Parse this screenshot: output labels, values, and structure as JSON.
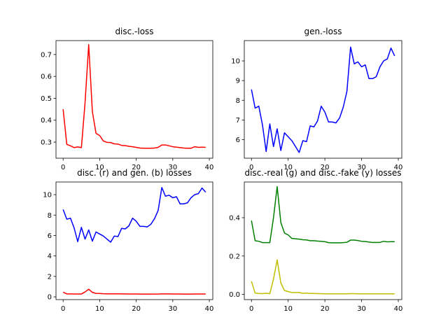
{
  "chart_data": [
    {
      "type": "line",
      "title": "disc.-loss",
      "xlabel": "",
      "ylabel": "",
      "xlim": [
        -1.95,
        40.95
      ],
      "ylim": [
        0.2265,
        0.7635
      ],
      "xticks": [
        0,
        10,
        20,
        30,
        40
      ],
      "yticks": [
        0.3,
        0.4,
        0.5,
        0.6,
        0.7
      ],
      "ytick_labels": [
        "0.3",
        "0.4",
        "0.5",
        "0.6",
        "0.7"
      ],
      "grid": false,
      "x": [
        0,
        1,
        2,
        3,
        4,
        5,
        6,
        7,
        8,
        9,
        10,
        11,
        12,
        13,
        14,
        15,
        16,
        17,
        18,
        19,
        20,
        21,
        22,
        23,
        24,
        25,
        26,
        27,
        28,
        29,
        30,
        31,
        32,
        33,
        34,
        35,
        36,
        37,
        38,
        39
      ],
      "series": [
        {
          "color": "#ff0000",
          "values": [
            0.45,
            0.29,
            0.283,
            0.275,
            0.278,
            0.275,
            0.48,
            0.745,
            0.44,
            0.34,
            0.33,
            0.305,
            0.299,
            0.298,
            0.292,
            0.291,
            0.285,
            0.284,
            0.281,
            0.279,
            0.276,
            0.273,
            0.272,
            0.272,
            0.272,
            0.273,
            0.276,
            0.287,
            0.287,
            0.283,
            0.279,
            0.277,
            0.275,
            0.273,
            0.272,
            0.272,
            0.279,
            0.276,
            0.277,
            0.276
          ]
        }
      ]
    },
    {
      "type": "line",
      "title": "gen.-loss",
      "xlabel": "",
      "ylabel": "",
      "xlim": [
        -1.95,
        40.95
      ],
      "ylim": [
        5.06,
        11.03
      ],
      "xticks": [
        0,
        10,
        20,
        30,
        40
      ],
      "yticks": [
        6,
        7,
        8,
        9,
        10
      ],
      "ytick_labels": [
        "6",
        "7",
        "8",
        "9",
        "10"
      ],
      "grid": false,
      "x": [
        0,
        1,
        2,
        3,
        4,
        5,
        6,
        7,
        8,
        9,
        10,
        11,
        12,
        13,
        14,
        15,
        16,
        17,
        18,
        19,
        20,
        21,
        22,
        23,
        24,
        25,
        26,
        27,
        28,
        29,
        30,
        31,
        32,
        33,
        34,
        35,
        36,
        37,
        38,
        39
      ],
      "series": [
        {
          "color": "#0000ff",
          "values": [
            8.55,
            7.6,
            7.7,
            6.75,
            5.4,
            6.8,
            5.65,
            6.55,
            5.45,
            6.35,
            6.15,
            5.95,
            5.65,
            5.35,
            5.95,
            5.9,
            6.7,
            6.65,
            6.95,
            7.7,
            7.4,
            6.9,
            6.9,
            6.85,
            7.1,
            7.65,
            8.45,
            10.7,
            9.85,
            9.95,
            9.7,
            9.8,
            9.1,
            9.1,
            9.2,
            9.7,
            10.0,
            10.1,
            10.65,
            10.25
          ]
        }
      ]
    },
    {
      "type": "line",
      "title": "disc. (r) and gen. (b) losses",
      "xlabel": "",
      "ylabel": "",
      "xlim": [
        -1.95,
        40.95
      ],
      "ylim": [
        -0.27,
        11.24
      ],
      "xticks": [
        0,
        10,
        20,
        30,
        40
      ],
      "yticks": [
        0,
        2,
        4,
        6,
        8,
        10
      ],
      "ytick_labels": [
        "0",
        "2",
        "4",
        "6",
        "8",
        "10"
      ],
      "grid": false,
      "x": [
        0,
        1,
        2,
        3,
        4,
        5,
        6,
        7,
        8,
        9,
        10,
        11,
        12,
        13,
        14,
        15,
        16,
        17,
        18,
        19,
        20,
        21,
        22,
        23,
        24,
        25,
        26,
        27,
        28,
        29,
        30,
        31,
        32,
        33,
        34,
        35,
        36,
        37,
        38,
        39
      ],
      "series": [
        {
          "color": "#0000ff",
          "values": [
            8.55,
            7.6,
            7.7,
            6.75,
            5.4,
            6.8,
            5.65,
            6.55,
            5.45,
            6.35,
            6.15,
            5.95,
            5.65,
            5.35,
            5.95,
            5.9,
            6.7,
            6.65,
            6.95,
            7.7,
            7.4,
            6.9,
            6.9,
            6.85,
            7.1,
            7.65,
            8.45,
            10.7,
            9.85,
            9.95,
            9.7,
            9.8,
            9.1,
            9.1,
            9.2,
            9.7,
            10.0,
            10.1,
            10.65,
            10.25
          ]
        },
        {
          "color": "#ff0000",
          "values": [
            0.45,
            0.29,
            0.283,
            0.275,
            0.278,
            0.275,
            0.48,
            0.745,
            0.44,
            0.34,
            0.33,
            0.305,
            0.299,
            0.298,
            0.292,
            0.291,
            0.285,
            0.284,
            0.281,
            0.279,
            0.276,
            0.273,
            0.272,
            0.272,
            0.272,
            0.273,
            0.276,
            0.287,
            0.287,
            0.283,
            0.279,
            0.277,
            0.275,
            0.273,
            0.272,
            0.272,
            0.279,
            0.276,
            0.277,
            0.276
          ]
        }
      ]
    },
    {
      "type": "line",
      "title": "disc.-real (g) and disc.-fake (y) losses",
      "xlabel": "",
      "ylabel": "",
      "xlim": [
        -1.95,
        40.95
      ],
      "ylim": [
        -0.027,
        0.586
      ],
      "xticks": [
        0,
        10,
        20,
        30,
        40
      ],
      "yticks": [
        0.0,
        0.2,
        0.4
      ],
      "ytick_labels": [
        "0.0",
        "0.2",
        "0.4"
      ],
      "grid": false,
      "x": [
        0,
        1,
        2,
        3,
        4,
        5,
        6,
        7,
        8,
        9,
        10,
        11,
        12,
        13,
        14,
        15,
        16,
        17,
        18,
        19,
        20,
        21,
        22,
        23,
        24,
        25,
        26,
        27,
        28,
        29,
        30,
        31,
        32,
        33,
        34,
        35,
        36,
        37,
        38,
        39
      ],
      "series": [
        {
          "color": "#008000",
          "values": [
            0.385,
            0.28,
            0.277,
            0.27,
            0.27,
            0.27,
            0.4,
            0.562,
            0.375,
            0.32,
            0.31,
            0.292,
            0.29,
            0.288,
            0.285,
            0.284,
            0.28,
            0.28,
            0.278,
            0.277,
            0.275,
            0.27,
            0.269,
            0.269,
            0.269,
            0.27,
            0.272,
            0.283,
            0.283,
            0.281,
            0.277,
            0.276,
            0.273,
            0.271,
            0.271,
            0.271,
            0.277,
            0.274,
            0.275,
            0.275
          ]
        },
        {
          "color": "#bfbf00",
          "values": [
            0.068,
            0.007,
            0.005,
            0.004,
            0.006,
            0.004,
            0.08,
            0.18,
            0.06,
            0.02,
            0.015,
            0.01,
            0.01,
            0.01,
            0.006,
            0.007,
            0.005,
            0.005,
            0.004,
            0.004,
            0.003,
            0.003,
            0.003,
            0.003,
            0.003,
            0.003,
            0.003,
            0.004,
            0.004,
            0.003,
            0.003,
            0.003,
            0.003,
            0.003,
            0.003,
            0.003,
            0.003,
            0.003,
            0.003,
            0.003
          ]
        }
      ]
    }
  ]
}
